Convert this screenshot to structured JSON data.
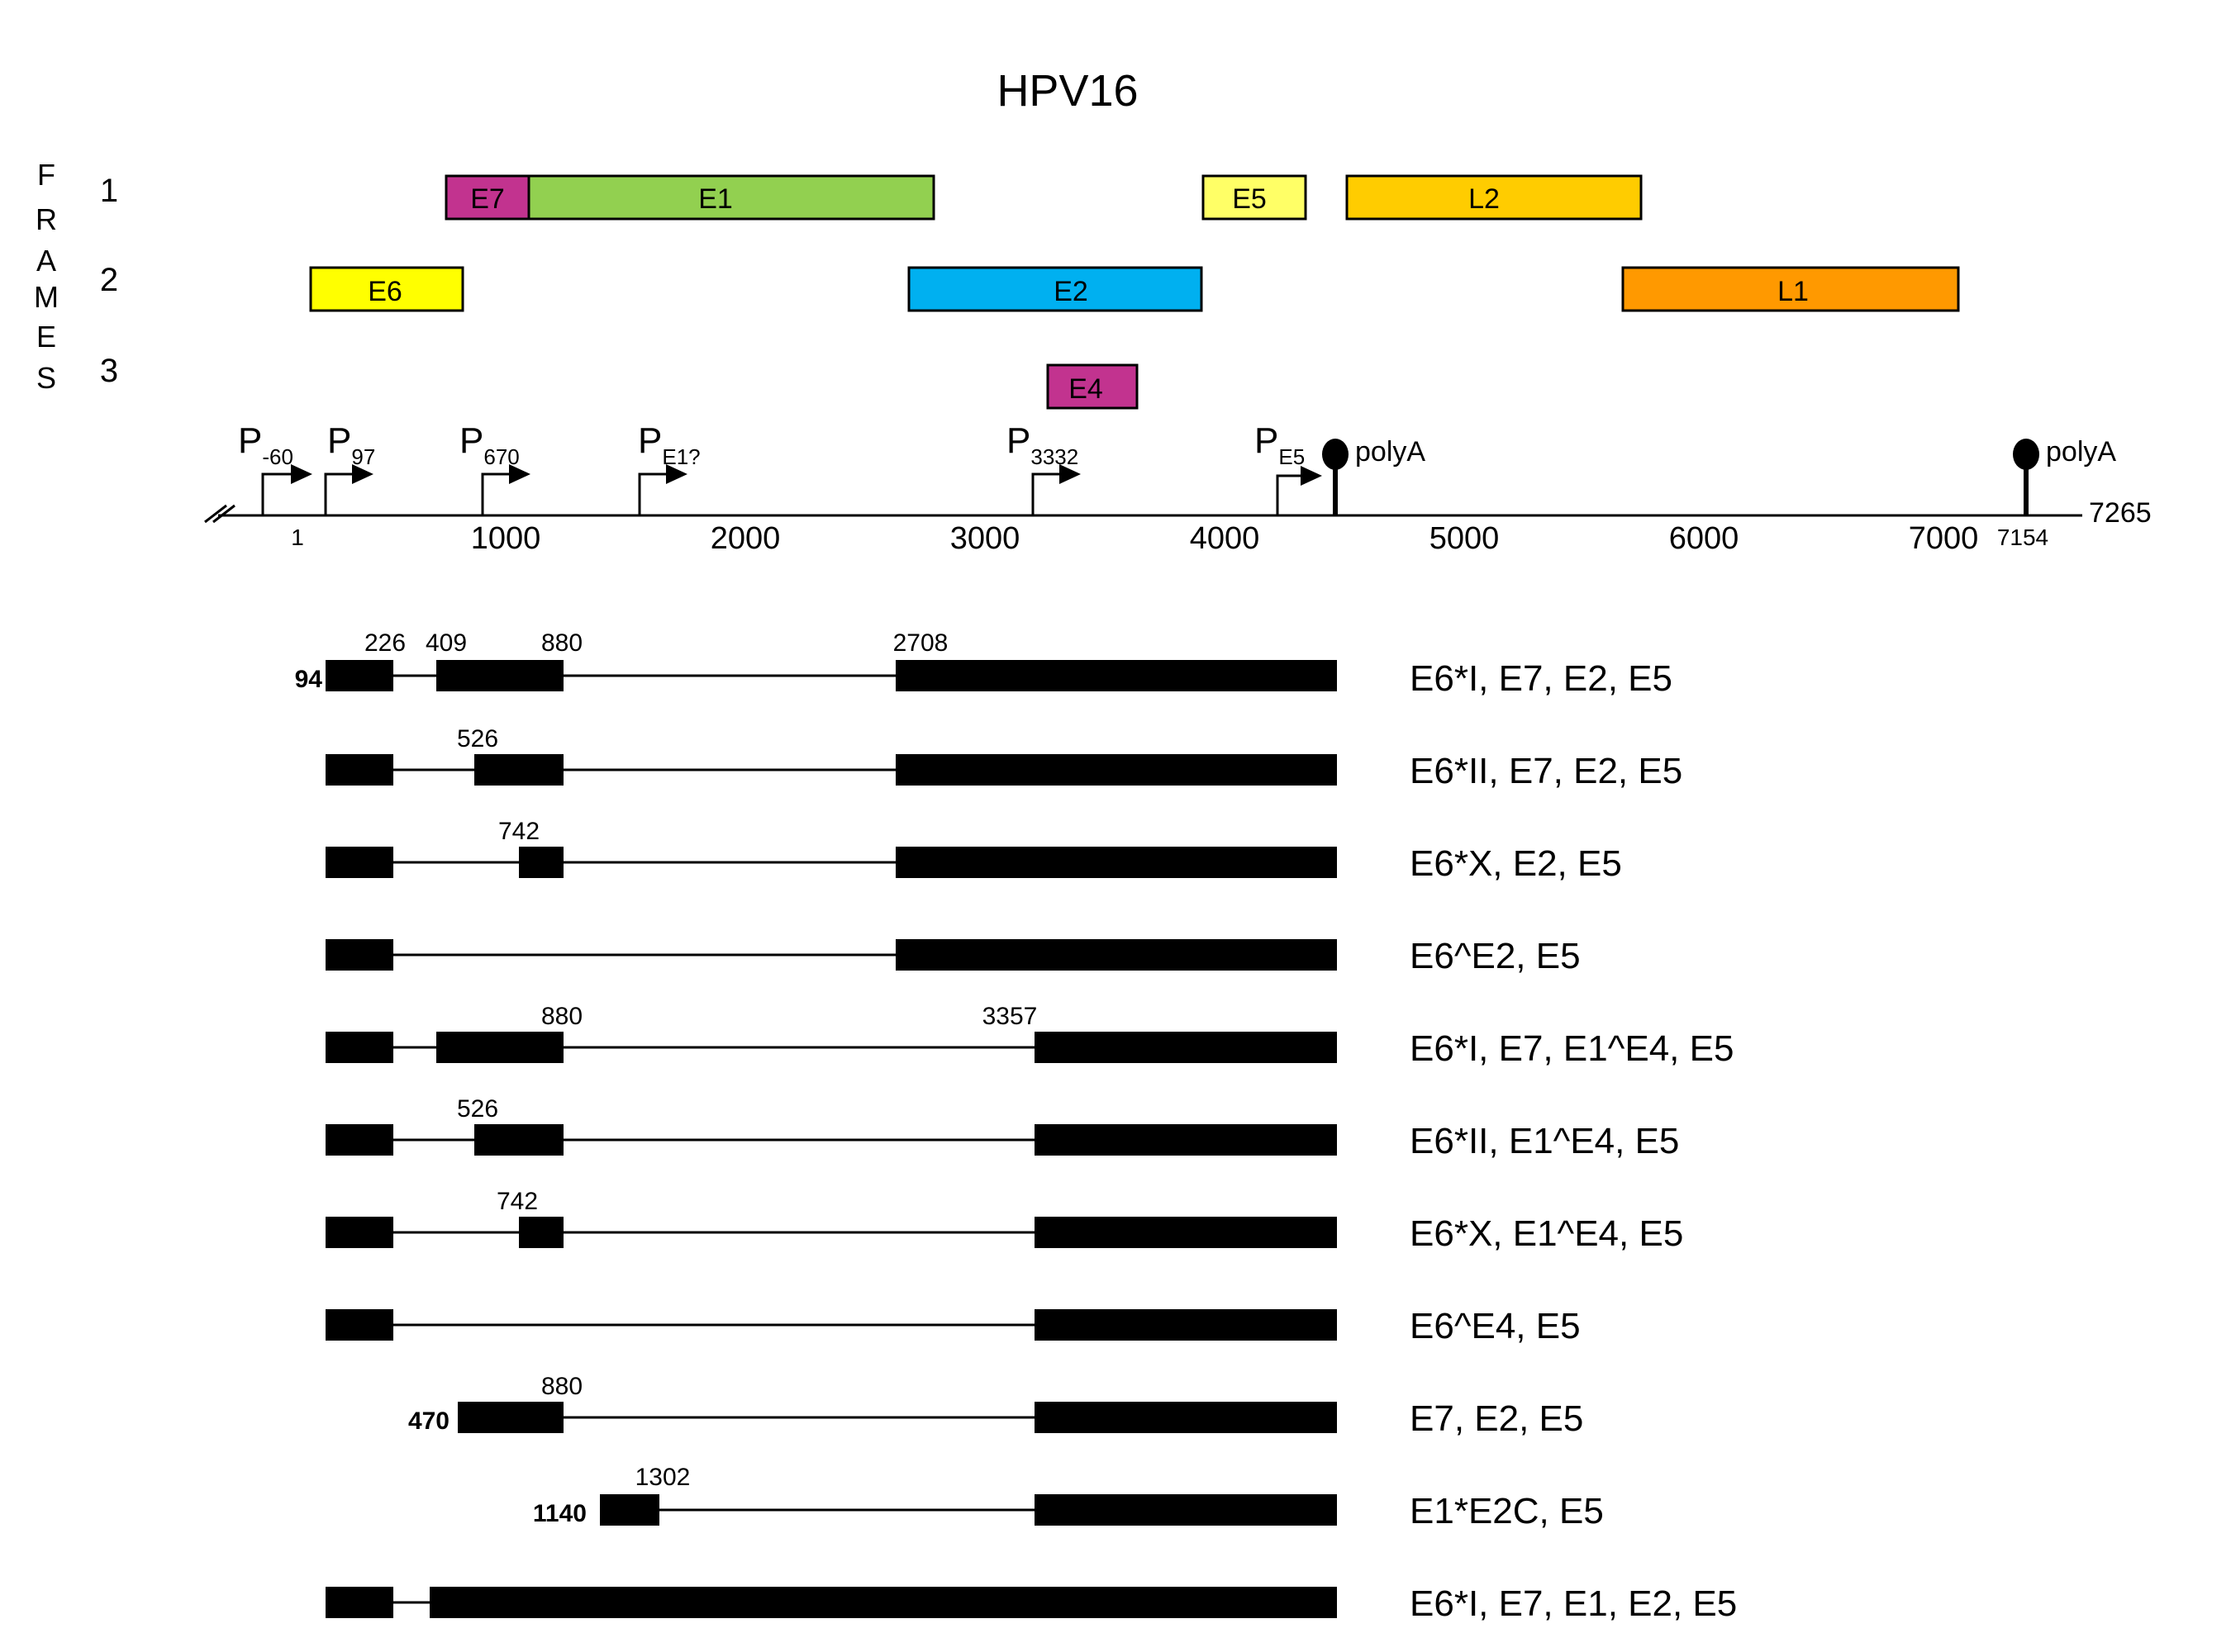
{
  "title": "HPV16",
  "frames_label": [
    "F",
    "R",
    "A",
    "M",
    "E",
    "S"
  ],
  "frame_numbers": [
    "1",
    "2",
    "3"
  ],
  "colors": {
    "E7": "#c2338f",
    "E1": "#92d050",
    "E5": "#ffff66",
    "L2": "#ffcc00",
    "E6": "#ffff00",
    "E2": "#00b0f0",
    "L1": "#ff9900",
    "E4": "#c2338f"
  },
  "orfs": [
    {
      "name": "E7",
      "frame": 1,
      "start": 562,
      "end": 858
    },
    {
      "name": "E1",
      "frame": 1,
      "start": 865,
      "end": 2813
    },
    {
      "name": "E5",
      "frame": 1,
      "start": 3849,
      "end": 4101
    },
    {
      "name": "L2",
      "frame": 1,
      "start": 4235,
      "end": 5657
    },
    {
      "name": "E6",
      "frame": 2,
      "start": 83,
      "end": 559
    },
    {
      "name": "E2",
      "frame": 2,
      "start": 2755,
      "end": 3852
    },
    {
      "name": "L1",
      "frame": 2,
      "start": 5560,
      "end": 7155
    },
    {
      "name": "E4",
      "frame": 3,
      "start": 3357,
      "end": 3620
    }
  ],
  "promoters": [
    {
      "main": "P",
      "sub": "-60",
      "pos": -60
    },
    {
      "main": "P",
      "sub": "97",
      "pos": 97
    },
    {
      "main": "P",
      "sub": "670",
      "pos": 670
    },
    {
      "main": "P",
      "sub": "E1?",
      "pos": 1400
    },
    {
      "main": "P",
      "sub": "3332",
      "pos": 3332
    },
    {
      "main": "P",
      "sub": "E5",
      "pos": 4380
    }
  ],
  "polyA": [
    {
      "label": "polyA",
      "pos": 4541
    },
    {
      "label": "polyA",
      "pos": 7154
    }
  ],
  "axis": {
    "start_label": "1",
    "ticks": [
      "1000",
      "2000",
      "3000",
      "4000",
      "5000",
      "6000",
      "7000"
    ],
    "end_label": "7265",
    "polyA_late_label": "7154"
  },
  "transcripts": [
    {
      "start_label": "94",
      "coord_labels": [
        "226",
        "409",
        "880",
        "2708"
      ],
      "product": "E6*I, E7, E2, E5"
    },
    {
      "coord_labels": [
        "526"
      ],
      "product": "E6*II, E7, E2, E5"
    },
    {
      "coord_labels": [
        "742"
      ],
      "product": "E6*X, E2, E5"
    },
    {
      "coord_labels": [],
      "product": "E6^E2, E5"
    },
    {
      "coord_labels": [
        "880",
        "3357"
      ],
      "product": "E6*I, E7, E1^E4, E5"
    },
    {
      "coord_labels": [
        "526"
      ],
      "product": "E6*II, E1^E4, E5"
    },
    {
      "coord_labels": [
        "742"
      ],
      "product": "E6*X, E1^E4, E5"
    },
    {
      "coord_labels": [],
      "product": "E6^E4, E5"
    },
    {
      "start_label": "470",
      "coord_labels": [
        "880"
      ],
      "product": "E7, E2, E5"
    },
    {
      "start_label": "1140",
      "coord_labels": [
        "1302"
      ],
      "product": "E1*E2C, E5"
    },
    {
      "coord_labels": [],
      "product": "E6*I, E7, E1, E2, E5"
    }
  ]
}
